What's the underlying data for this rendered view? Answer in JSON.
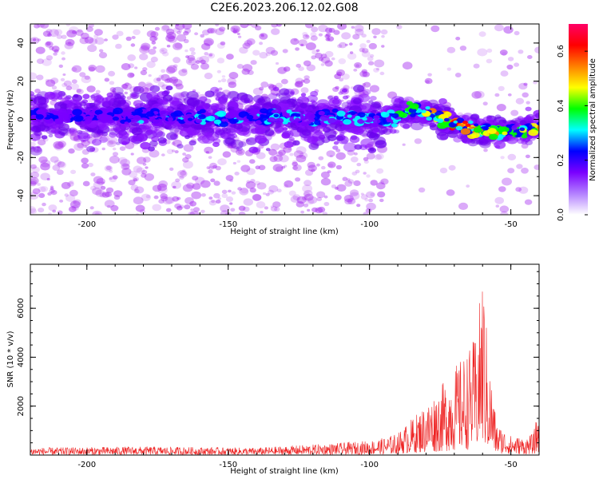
{
  "title": "C2E6.2023.206.12.02.G08",
  "colors": {
    "axis": "#000000",
    "snr_line": "#ee2222",
    "scatter_base": "#a020f0"
  },
  "chart_data": [
    {
      "type": "heatmap",
      "name": "spectrogram",
      "xlabel": "Height of straight line (km)",
      "ylabel": "Frequency (Hz)",
      "xlim": [
        -220,
        -40
      ],
      "ylim": [
        -50,
        50
      ],
      "xticks": [
        -200,
        -150,
        -100,
        -50
      ],
      "xtick_labels": [
        "-200",
        "-150",
        "-100",
        "-50"
      ],
      "yticks": [
        -40,
        -20,
        0,
        20,
        40
      ],
      "ytick_labels": [
        "-40",
        "-20",
        "0",
        "20",
        "40"
      ],
      "colorbar": {
        "label": "Normalized spectral amplitude",
        "range": [
          0,
          0.7
        ],
        "ticks": [
          0.0,
          0.2,
          0.4,
          0.6
        ],
        "tick_labels": [
          "0.0",
          "0.2",
          "0.4",
          "0.6"
        ],
        "stops": [
          "#ffffff",
          "#b380ff",
          "#7a00ff",
          "#0000ff",
          "#00ffff",
          "#00ff00",
          "#ffff00",
          "#ff8000",
          "#ff0000",
          "#ff0066"
        ]
      },
      "ridge": {
        "x": [
          -220,
          -150,
          -100,
          -95,
          -90,
          -85,
          -80,
          -75,
          -70,
          -65,
          -60,
          -55,
          -50,
          -45,
          -40
        ],
        "freq": [
          2,
          1,
          1,
          0,
          2,
          5,
          4,
          1,
          -2,
          -5,
          -6,
          -6,
          -6,
          -5,
          -4
        ],
        "peak_amplitude": [
          0.25,
          0.3,
          0.35,
          0.3,
          0.4,
          0.45,
          0.5,
          0.6,
          0.65,
          0.7,
          0.6,
          0.5,
          0.45,
          0.5,
          0.55
        ]
      }
    },
    {
      "type": "line",
      "name": "snr",
      "xlabel": "Height of straight line (km)",
      "ylabel": "SNR (10 * v/v)",
      "xlim": [
        -220,
        -40
      ],
      "ylim": [
        0,
        7800
      ],
      "xticks": [
        -200,
        -150,
        -100,
        -50
      ],
      "xtick_labels": [
        "-200",
        "-150",
        "-100",
        "-50"
      ],
      "yticks": [
        2000,
        4000,
        6000
      ],
      "ytick_labels": [
        "2000",
        "4000",
        "6000"
      ],
      "envelope": {
        "x": [
          -220,
          -180,
          -140,
          -110,
          -100,
          -95,
          -90,
          -85,
          -80,
          -75,
          -70,
          -65,
          -62,
          -60,
          -58,
          -55,
          -50,
          -45,
          -42,
          -40
        ],
        "y": [
          300,
          350,
          300,
          500,
          600,
          700,
          900,
          1500,
          2100,
          2800,
          3600,
          4300,
          5000,
          7800,
          4200,
          1300,
          800,
          700,
          900,
          2000
        ]
      }
    }
  ]
}
